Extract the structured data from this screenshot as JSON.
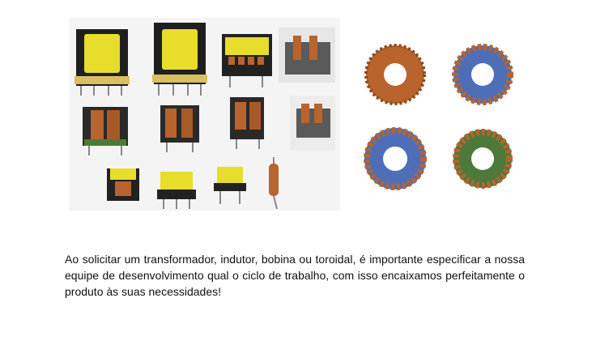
{
  "images": {
    "left": {
      "alt": "transformers-and-inductors-photo",
      "icon": "component-grid-image"
    },
    "right": {
      "alt": "toroidal-coils-photo",
      "icon": "toroid-image"
    }
  },
  "caption": {
    "text": "Ao solicitar um transformador, indutor, bobina ou toroidal, é importante especificar a nossa equipe de desenvolvimento qual o ciclo de trabalho, com isso encaixamos perfeitamente o produto às suas necessidades!"
  },
  "colors": {
    "background": "#ffffff",
    "text": "#111111",
    "tape_yellow": "#e8dd2a",
    "bobbin_black": "#222222",
    "copper": "#b8642c",
    "toroid_blue": "#4e6fb8",
    "toroid_green": "#4d7a3a"
  }
}
